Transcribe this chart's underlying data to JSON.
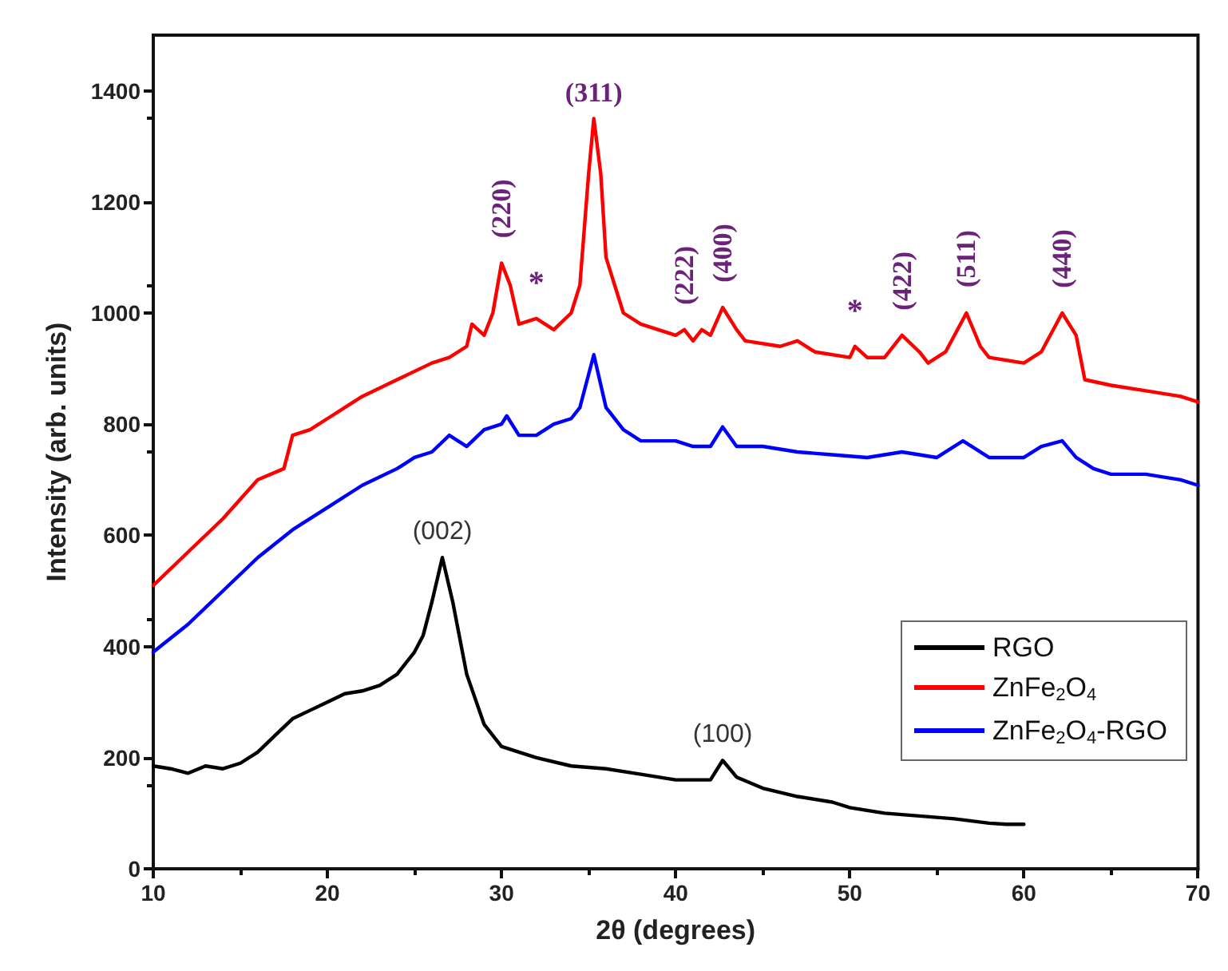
{
  "chart_data": {
    "type": "line",
    "xlabel": "2θ (degrees)",
    "ylabel": "Intensity (arb. units)",
    "xlim": [
      10,
      70
    ],
    "xticks": [
      10,
      20,
      30,
      40,
      50,
      60,
      70
    ],
    "ylim": [
      0,
      1500
    ],
    "yticks": [
      0,
      200,
      400,
      600,
      800,
      1000,
      1200,
      1400
    ],
    "grid": false,
    "legend": "bottom right",
    "marker": "none",
    "line_style": "solid",
    "series": [
      {
        "name": "RGO",
        "color": "#000000",
        "x": [
          10,
          11,
          12,
          13,
          14,
          15,
          16,
          17,
          18,
          19,
          20,
          21,
          22,
          23,
          24,
          25,
          25.5,
          26,
          26.6,
          27.2,
          28,
          29,
          30,
          31,
          32,
          34,
          36,
          38,
          40,
          42,
          42.7,
          43.5,
          45,
          47,
          49,
          50,
          52,
          54,
          56,
          58,
          59,
          60
        ],
        "values": [
          185,
          180,
          172,
          185,
          180,
          190,
          210,
          240,
          270,
          285,
          300,
          315,
          320,
          330,
          350,
          390,
          420,
          480,
          560,
          480,
          350,
          260,
          220,
          210,
          200,
          185,
          180,
          170,
          160,
          160,
          195,
          165,
          145,
          130,
          120,
          110,
          100,
          95,
          90,
          82,
          80,
          80
        ]
      },
      {
        "name": "ZnFe$_{2}$O$_{4}$",
        "color": "#ff0000",
        "x": [
          10,
          12,
          14,
          16,
          17.5,
          18,
          19,
          20,
          22,
          24,
          26,
          27,
          28,
          28.3,
          29,
          29.5,
          30,
          30.5,
          31,
          32,
          33,
          34,
          34.5,
          35,
          35.3,
          35.7,
          36,
          37,
          38,
          40,
          40.5,
          41,
          41.5,
          42,
          42.7,
          43.5,
          44,
          46,
          47,
          48,
          50,
          50.3,
          51,
          52,
          53,
          54,
          54.5,
          55.5,
          56.7,
          57.5,
          58,
          60,
          61,
          62.2,
          63,
          63.5,
          65,
          67,
          69,
          70
        ],
        "values": [
          510,
          570,
          630,
          700,
          720,
          780,
          790,
          810,
          850,
          880,
          910,
          920,
          940,
          980,
          960,
          1000,
          1090,
          1050,
          980,
          990,
          970,
          1000,
          1050,
          1250,
          1350,
          1250,
          1100,
          1000,
          980,
          960,
          970,
          950,
          970,
          960,
          1010,
          970,
          950,
          940,
          950,
          930,
          920,
          940,
          920,
          920,
          960,
          930,
          910,
          930,
          1000,
          940,
          920,
          910,
          930,
          1000,
          960,
          880,
          870,
          860,
          850,
          840
        ]
      },
      {
        "name": "ZnFe$_{2}$O$_{4}$-RGO",
        "color": "#0000ff",
        "x": [
          10,
          12,
          14,
          16,
          18,
          20,
          22,
          24,
          25,
          26,
          27,
          28,
          29,
          30,
          30.3,
          31,
          32,
          33,
          34,
          34.5,
          35.3,
          36,
          37,
          38,
          40,
          41,
          42,
          42.7,
          43.5,
          45,
          47,
          49,
          51,
          53,
          55,
          56.5,
          58,
          60,
          61,
          62.2,
          63,
          64,
          65,
          67,
          69,
          70
        ],
        "values": [
          390,
          440,
          500,
          560,
          610,
          650,
          690,
          720,
          740,
          750,
          780,
          760,
          790,
          800,
          815,
          780,
          780,
          800,
          810,
          830,
          925,
          830,
          790,
          770,
          770,
          760,
          760,
          795,
          760,
          760,
          750,
          745,
          740,
          750,
          740,
          770,
          740,
          740,
          760,
          770,
          740,
          720,
          710,
          710,
          700,
          690
        ]
      }
    ],
    "annotations": [
      {
        "text": "(002)",
        "x": 26.6,
        "y": 560
      },
      {
        "text": "(100)",
        "x": 42.7,
        "y": 195
      },
      {
        "text": "(220)",
        "x": 30,
        "y": 1090
      },
      {
        "text": "(311)",
        "x": 35.3,
        "y": 1350
      },
      {
        "text": "(222)",
        "x": 40.5,
        "y": 970
      },
      {
        "text": "(400)",
        "x": 42.7,
        "y": 1010
      },
      {
        "text": "(422)",
        "x": 53,
        "y": 960
      },
      {
        "text": "(511)",
        "x": 56.7,
        "y": 1000
      },
      {
        "text": "(440)",
        "x": 62.2,
        "y": 1000
      },
      {
        "text": "*",
        "x": 32,
        "y": 990
      },
      {
        "text": "*",
        "x": 50.3,
        "y": 940
      }
    ]
  }
}
